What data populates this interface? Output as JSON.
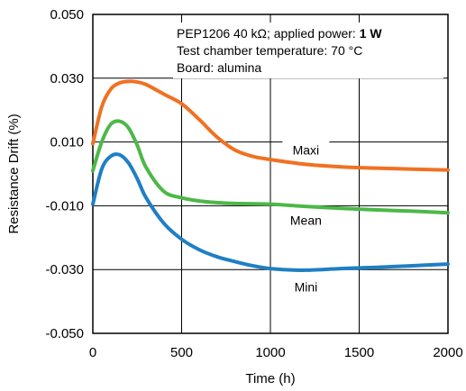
{
  "chart_data": {
    "type": "line",
    "xlabel": "Time (h)",
    "ylabel": "Resistance Drift (%)",
    "xlim": [
      0,
      2000
    ],
    "ylim": [
      -0.05,
      0.05
    ],
    "x_ticks": [
      "0",
      "500",
      "1000",
      "1500",
      "2000"
    ],
    "y_ticks": [
      "0.050",
      "0.030",
      "0.010",
      "-0.010",
      "-0.030",
      "-0.050"
    ],
    "grid": true,
    "annotation": {
      "line1_prefix": "PEP1206 40 kΩ; applied power: ",
      "line1_bold": "1 W",
      "line2": "Test chamber temperature: 70 °C",
      "line3": "Board: alumina"
    },
    "series": [
      {
        "name": "Maxi",
        "color": "#f07122",
        "x": [
          0,
          50,
          100,
          150,
          200,
          250,
          300,
          400,
          500,
          600,
          700,
          800,
          900,
          1000,
          1200,
          1400,
          1600,
          1800,
          2000
        ],
        "y": [
          0.0095,
          0.021,
          0.0265,
          0.0285,
          0.029,
          0.0288,
          0.028,
          0.025,
          0.022,
          0.017,
          0.0115,
          0.0075,
          0.0055,
          0.0045,
          0.003,
          0.0022,
          0.0018,
          0.0015,
          0.0012
        ]
      },
      {
        "name": "Mean",
        "color": "#4cb848",
        "x": [
          0,
          50,
          100,
          150,
          200,
          250,
          300,
          400,
          500,
          600,
          700,
          800,
          1000,
          1200,
          1400,
          1600,
          1800,
          2000
        ],
        "y": [
          0.001,
          0.01,
          0.0155,
          0.0165,
          0.0145,
          0.009,
          0.002,
          -0.0055,
          -0.0075,
          -0.0085,
          -0.009,
          -0.0093,
          -0.0095,
          -0.0102,
          -0.0108,
          -0.0113,
          -0.0117,
          -0.0122
        ]
      },
      {
        "name": "Mini",
        "color": "#1f7fc4",
        "x": [
          0,
          50,
          100,
          150,
          200,
          250,
          300,
          400,
          500,
          600,
          700,
          800,
          900,
          1000,
          1100,
          1200,
          1400,
          1600,
          1800,
          2000
        ],
        "y": [
          -0.0095,
          0.0015,
          0.0055,
          0.006,
          0.0035,
          -0.0015,
          -0.0075,
          -0.0155,
          -0.0205,
          -0.0238,
          -0.026,
          -0.0275,
          -0.0288,
          -0.0297,
          -0.0301,
          -0.0302,
          -0.0297,
          -0.0293,
          -0.0288,
          -0.0283
        ]
      }
    ]
  }
}
